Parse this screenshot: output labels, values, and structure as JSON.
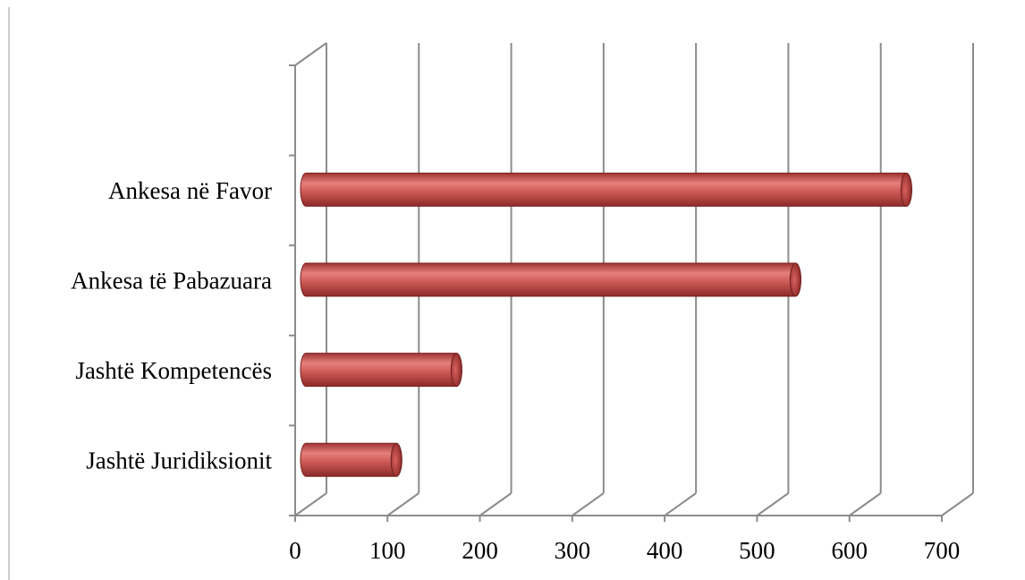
{
  "chart_data": {
    "type": "bar",
    "orientation": "horizontal",
    "style": "3d-cylinder",
    "title": "",
    "xlabel": "",
    "ylabel": "",
    "categories": [
      "Jashtë Juridiksionit",
      "Jashtë Kompetencës",
      "Ankesa të Pabazuara",
      "Ankesa në Favor"
    ],
    "values": [
      98,
      163,
      530,
      650
    ],
    "xlim": [
      0,
      700
    ],
    "x_ticks": [
      "0",
      "100",
      "200",
      "300",
      "400",
      "500",
      "600",
      "700"
    ],
    "grid": true,
    "legend": "none",
    "colors": {
      "bar": "#c0504d",
      "bar_light": "#e6807c",
      "bar_dark": "#8c2a28",
      "grid": "#8c8c8c",
      "axis": "#8c8c8c"
    }
  }
}
